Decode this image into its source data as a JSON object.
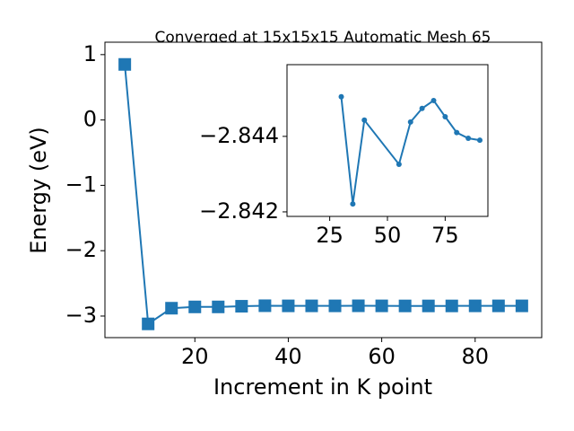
{
  "chart_data": [
    {
      "type": "line",
      "title": "Converged at 15x15x15 Automatic Mesh 65",
      "x_label": "Increment in K point",
      "y_label": "Energy (eV)",
      "x": [
        5,
        10,
        15,
        20,
        25,
        30,
        35,
        40,
        45,
        50,
        55,
        60,
        65,
        70,
        75,
        80,
        85,
        90
      ],
      "series": [
        {
          "color": "#1f77b4",
          "marker": "square",
          "values": [
            0.85,
            -3.12,
            -2.88,
            -2.86,
            -2.86,
            -2.85,
            -2.842,
            -2.844,
            -2.844,
            -2.844,
            -2.843,
            -2.844,
            -2.845,
            -2.845,
            -2.845,
            -2.844,
            -2.844,
            -2.844
          ]
        }
      ],
      "xlim": [
        0.75,
        94.25
      ],
      "ylim": [
        -3.33,
        1.19
      ],
      "xticks": [
        20,
        40,
        60,
        80
      ],
      "yticks": [
        {
          "value": -3,
          "label": "−3"
        },
        {
          "value": -2,
          "label": "−2"
        },
        {
          "value": -1,
          "label": "−1"
        },
        0,
        1
      ]
    },
    {
      "type": "line",
      "x": [
        30,
        35,
        40,
        55,
        60,
        65,
        70,
        75,
        80,
        85,
        90
      ],
      "series": [
        {
          "color": "#1f77b4",
          "marker": "circle",
          "values": [
            -2.84505,
            -2.84221,
            -2.84443,
            -2.84326,
            -2.84438,
            -2.84474,
            -2.84495,
            -2.84452,
            -2.8441,
            -2.84395,
            -2.8439
          ]
        }
      ],
      "xlim": [
        6.5,
        93.5
      ],
      "ylim": [
        -2.84188,
        -2.8459
      ],
      "xticks": [
        25,
        50,
        75
      ],
      "yticks": [
        {
          "value": -2.844,
          "label": "−2.844"
        },
        {
          "value": -2.842,
          "label": "−2.842"
        }
      ]
    }
  ]
}
